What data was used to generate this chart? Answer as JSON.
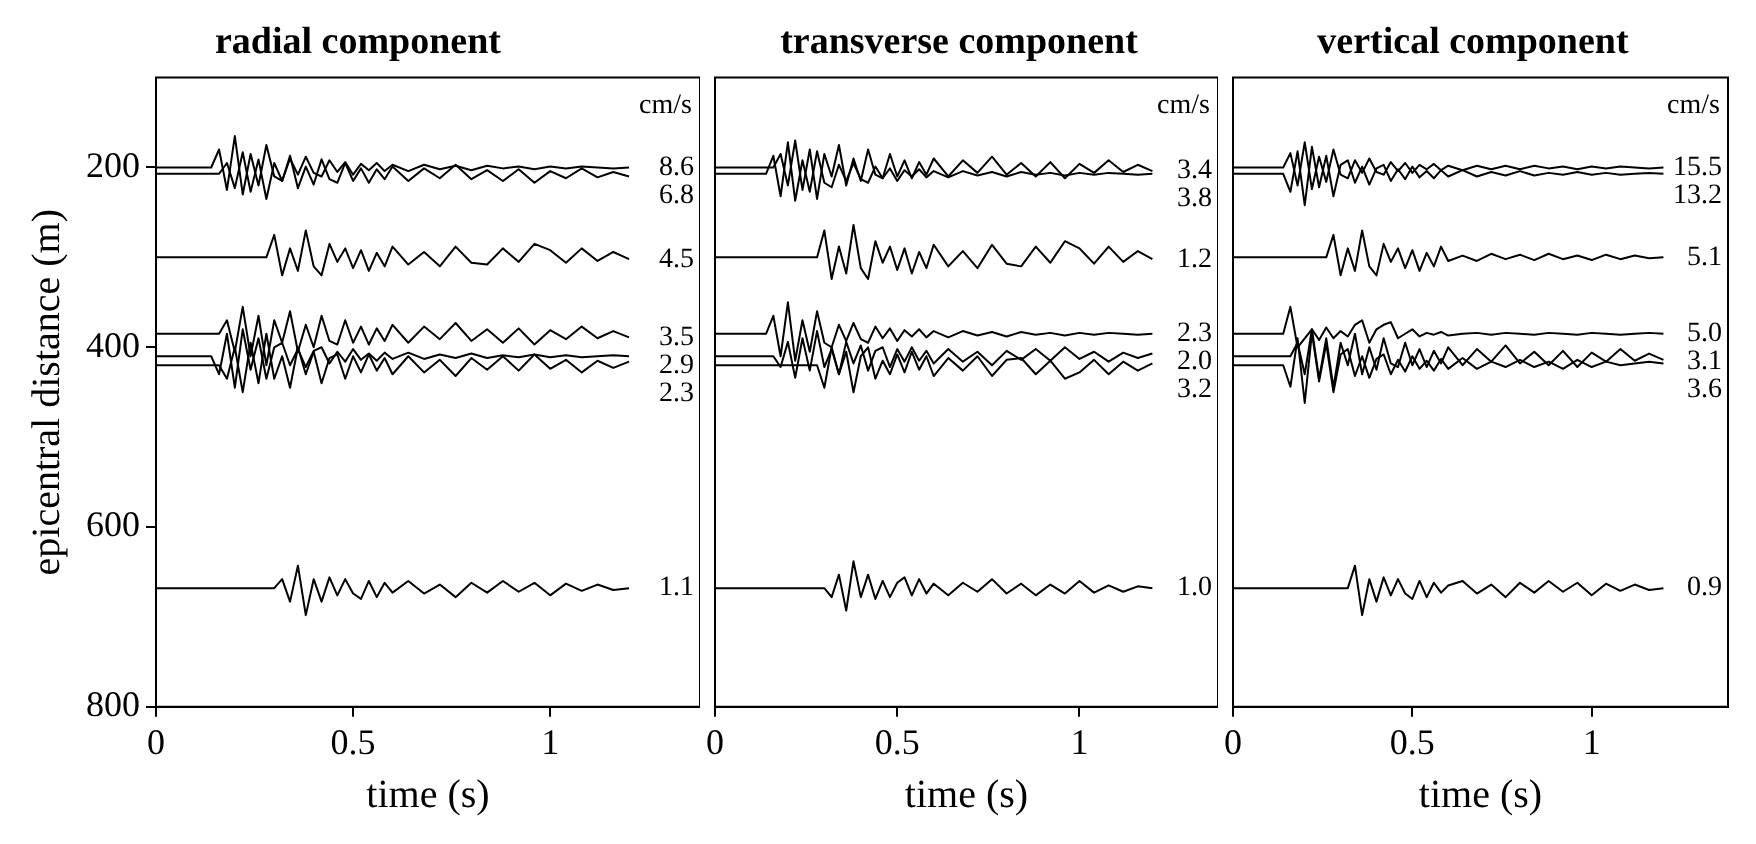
{
  "chart_data": [
    {
      "type": "line",
      "title": "radial component",
      "xlabel": "time (s)",
      "ylabel": "epicentral distance (m)",
      "xlim": [
        0,
        1.38
      ],
      "xticks": [
        0,
        0.5,
        1
      ],
      "ylim": [
        800,
        100
      ],
      "yticks": [
        200,
        400,
        600,
        800
      ],
      "marker": "none",
      "x": [
        0,
        0.14,
        0.16,
        0.18,
        0.2,
        0.22,
        0.24,
        0.26,
        0.28,
        0.3,
        0.32,
        0.34,
        0.36,
        0.38,
        0.4,
        0.42,
        0.44,
        0.46,
        0.48,
        0.5,
        0.52,
        0.54,
        0.56,
        0.58,
        0.6,
        0.64,
        0.68,
        0.72,
        0.76,
        0.8,
        0.84,
        0.88,
        0.92,
        0.96,
        1.0,
        1.04,
        1.08,
        1.12,
        1.16,
        1.2
      ],
      "series": [
        {
          "color": "#000000",
          "values": [
            200,
            200,
            180,
            225,
            165,
            230,
            185,
            220,
            175,
            210,
            215,
            190,
            208,
            188,
            206,
            210,
            192,
            205,
            194,
            208,
            196,
            203,
            195,
            204,
            197,
            204,
            197,
            202,
            198,
            203,
            198,
            201,
            199,
            202,
            199,
            201,
            199,
            200,
            201,
            200
          ]
        },
        {
          "color": "#000000",
          "values": [
            207,
            207,
            207,
            195,
            223,
            183,
            227,
            191,
            235,
            195,
            215,
            187,
            223,
            199,
            219,
            191,
            213,
            217,
            195,
            215,
            201,
            217,
            202,
            213,
            199,
            215,
            201,
            212,
            197,
            213,
            203,
            215,
            202,
            217,
            204,
            212,
            201,
            211,
            205,
            210
          ]
        },
        {
          "color": "#000000",
          "values": [
            300,
            300,
            300,
            300,
            300,
            300,
            300,
            300,
            300,
            275,
            320,
            290,
            315,
            270,
            310,
            320,
            285,
            305,
            290,
            312,
            292,
            315,
            295,
            310,
            288,
            308,
            294,
            310,
            288,
            306,
            308,
            290,
            305,
            285,
            292,
            306,
            290,
            304,
            294,
            302
          ]
        },
        {
          "color": "#000000",
          "values": [
            385,
            385,
            385,
            370,
            405,
            355,
            410,
            365,
            420,
            370,
            395,
            360,
            405,
            375,
            400,
            365,
            393,
            397,
            370,
            395,
            377,
            397,
            379,
            393,
            375,
            395,
            377,
            391,
            373,
            393,
            380,
            395,
            379,
            397,
            381,
            391,
            377,
            390,
            382,
            389
          ]
        },
        {
          "color": "#000000",
          "values": [
            410,
            410,
            430,
            385,
            445,
            380,
            425,
            390,
            435,
            400,
            395,
            420,
            402,
            422,
            404,
            400,
            418,
            405,
            416,
            402,
            414,
            407,
            415,
            406,
            413,
            406,
            413,
            408,
            412,
            407,
            412,
            409,
            411,
            408,
            411,
            409,
            411,
            410,
            409,
            410
          ]
        },
        {
          "color": "#000000",
          "values": [
            420,
            420,
            420,
            435,
            400,
            450,
            395,
            440,
            385,
            435,
            410,
            445,
            400,
            430,
            405,
            440,
            412,
            408,
            435,
            410,
            428,
            408,
            426,
            412,
            430,
            410,
            428,
            414,
            432,
            412,
            425,
            410,
            426,
            408,
            424,
            414,
            428,
            415,
            423,
            416
          ]
        },
        {
          "color": "#000000",
          "values": [
            668,
            668,
            668,
            668,
            668,
            668,
            668,
            668,
            668,
            668,
            658,
            683,
            643,
            698,
            658,
            683,
            656,
            676,
            658,
            674,
            680,
            660,
            678,
            662,
            673,
            660,
            674,
            664,
            678,
            662,
            673,
            660,
            672,
            662,
            676,
            663,
            671,
            664,
            670,
            668
          ]
        }
      ],
      "annotations": [
        "cm/s",
        "8.6",
        "6.8",
        "4.5",
        "3.5",
        "2.9",
        "2.3",
        "1.1"
      ]
    },
    {
      "type": "line",
      "title": "transverse component",
      "xlabel": "time (s)",
      "xlim": [
        0,
        1.38
      ],
      "xticks": [
        0,
        0.5,
        1
      ],
      "ylim": [
        800,
        100
      ],
      "yticks": [
        200,
        400,
        600,
        800
      ],
      "marker": "none",
      "tick_labels": "x",
      "x": [
        0,
        0.14,
        0.16,
        0.18,
        0.2,
        0.22,
        0.24,
        0.26,
        0.28,
        0.3,
        0.32,
        0.34,
        0.36,
        0.38,
        0.4,
        0.42,
        0.44,
        0.46,
        0.48,
        0.5,
        0.52,
        0.54,
        0.56,
        0.58,
        0.6,
        0.64,
        0.68,
        0.72,
        0.76,
        0.8,
        0.84,
        0.88,
        0.92,
        0.96,
        1.0,
        1.04,
        1.08,
        1.12,
        1.16,
        1.2
      ],
      "series": [
        {
          "color": "#000000",
          "values": [
            200,
            200,
            200,
            185,
            220,
            170,
            225,
            180,
            235,
            185,
            210,
            175,
            220,
            190,
            215,
            180,
            208,
            212,
            185,
            210,
            192,
            212,
            194,
            208,
            190,
            210,
            192,
            206,
            188,
            208,
            195,
            210,
            194,
            212,
            196,
            206,
            192,
            205,
            197,
            204
          ]
        },
        {
          "color": "#000000",
          "values": [
            207,
            207,
            187,
            232,
            172,
            237,
            192,
            227,
            182,
            217,
            222,
            197,
            215,
            195,
            213,
            217,
            199,
            212,
            201,
            215,
            203,
            210,
            202,
            211,
            204,
            211,
            204,
            209,
            205,
            210,
            205,
            208,
            206,
            209,
            206,
            208,
            206,
            207,
            208,
            207
          ]
        },
        {
          "color": "#000000",
          "values": [
            300,
            300,
            300,
            300,
            300,
            300,
            300,
            300,
            300,
            270,
            324,
            288,
            318,
            264,
            312,
            324,
            282,
            306,
            288,
            314,
            290,
            318,
            294,
            312,
            286,
            310,
            293,
            312,
            286,
            307,
            310,
            288,
            306,
            282,
            290,
            307,
            288,
            305,
            293,
            302
          ]
        },
        {
          "color": "#000000",
          "values": [
            385,
            385,
            365,
            410,
            350,
            415,
            370,
            405,
            360,
            395,
            400,
            375,
            393,
            373,
            391,
            395,
            377,
            390,
            379,
            393,
            381,
            388,
            380,
            389,
            382,
            389,
            382,
            387,
            383,
            388,
            383,
            386,
            384,
            387,
            384,
            386,
            384,
            385,
            386,
            385
          ]
        },
        {
          "color": "#000000",
          "values": [
            410,
            410,
            410,
            422,
            394,
            434,
            390,
            426,
            382,
            422,
            402,
            430,
            394,
            418,
            398,
            426,
            404,
            400,
            422,
            402,
            416,
            400,
            415,
            404,
            418,
            402,
            416,
            405,
            420,
            404,
            414,
            402,
            415,
            400,
            413,
            405,
            416,
            406,
            412,
            407
          ]
        },
        {
          "color": "#000000",
          "values": [
            420,
            420,
            420,
            420,
            420,
            420,
            420,
            420,
            420,
            445,
            400,
            430,
            405,
            450,
            410,
            400,
            435,
            415,
            430,
            408,
            428,
            405,
            425,
            410,
            432,
            412,
            426,
            410,
            432,
            414,
            412,
            430,
            415,
            435,
            428,
            414,
            430,
            416,
            426,
            418
          ]
        },
        {
          "color": "#000000",
          "values": [
            668,
            668,
            668,
            668,
            668,
            668,
            668,
            668,
            668,
            668,
            678,
            653,
            693,
            638,
            678,
            653,
            680,
            660,
            678,
            662,
            656,
            676,
            658,
            674,
            663,
            676,
            662,
            672,
            658,
            674,
            663,
            676,
            664,
            674,
            660,
            673,
            665,
            672,
            666,
            668
          ]
        }
      ],
      "annotations": [
        "cm/s",
        "3.4",
        "3.8",
        "1.2",
        "2.3",
        "2.0",
        "3.2",
        "1.0"
      ]
    },
    {
      "type": "line",
      "title": "vertical component",
      "xlabel": "time (s)",
      "xlim": [
        0,
        1.38
      ],
      "xticks": [
        0,
        0.5,
        1
      ],
      "ylim": [
        800,
        100
      ],
      "yticks": [
        200,
        400,
        600,
        800
      ],
      "marker": "none",
      "tick_labels": "x",
      "x": [
        0,
        0.14,
        0.16,
        0.18,
        0.2,
        0.22,
        0.24,
        0.26,
        0.28,
        0.3,
        0.32,
        0.34,
        0.36,
        0.38,
        0.4,
        0.42,
        0.44,
        0.46,
        0.48,
        0.5,
        0.52,
        0.54,
        0.56,
        0.58,
        0.6,
        0.64,
        0.68,
        0.72,
        0.76,
        0.8,
        0.84,
        0.88,
        0.92,
        0.96,
        1.0,
        1.04,
        1.08,
        1.12,
        1.16,
        1.2
      ],
      "series": [
        {
          "color": "#000000",
          "values": [
            200,
            200,
            184,
            220,
            172,
            224,
            188,
            216,
            180,
            208,
            212,
            192,
            206,
            190,
            205,
            208,
            194,
            204,
            195,
            206,
            197,
            202,
            196,
            203,
            198,
            203,
            198,
            202,
            198,
            202,
            198,
            201,
            199,
            202,
            199,
            201,
            199,
            200,
            201,
            200
          ]
        },
        {
          "color": "#000000",
          "values": [
            207,
            207,
            227,
            182,
            242,
            177,
            222,
            187,
            232,
            197,
            192,
            217,
            199,
            219,
            201,
            197,
            215,
            202,
            213,
            199,
            211,
            204,
            212,
            203,
            210,
            203,
            210,
            205,
            209,
            204,
            209,
            206,
            208,
            205,
            208,
            206,
            208,
            207,
            206,
            207
          ]
        },
        {
          "color": "#000000",
          "values": [
            300,
            300,
            300,
            300,
            300,
            300,
            300,
            300,
            275,
            320,
            290,
            315,
            270,
            310,
            320,
            285,
            305,
            290,
            312,
            292,
            315,
            295,
            310,
            288,
            304,
            298,
            304,
            296,
            302,
            297,
            303,
            296,
            302,
            298,
            303,
            297,
            302,
            298,
            301,
            300
          ]
        },
        {
          "color": "#000000",
          "values": [
            385,
            385,
            355,
            400,
            390,
            380,
            392,
            378,
            390,
            382,
            388,
            375,
            370,
            395,
            380,
            375,
            372,
            390,
            385,
            380,
            388,
            384,
            386,
            383,
            387,
            385,
            384,
            386,
            384,
            385,
            386,
            384,
            385,
            386,
            384,
            385,
            386,
            385,
            384,
            385
          ]
        },
        {
          "color": "#000000",
          "values": [
            410,
            410,
            410,
            395,
            430,
            380,
            435,
            390,
            445,
            395,
            420,
            385,
            430,
            400,
            425,
            390,
            418,
            422,
            395,
            420,
            402,
            422,
            404,
            418,
            400,
            420,
            402,
            416,
            398,
            418,
            405,
            420,
            404,
            422,
            406,
            416,
            402,
            415,
            407,
            414
          ]
        },
        {
          "color": "#000000",
          "values": [
            420,
            420,
            444,
            390,
            462,
            384,
            438,
            396,
            450,
            408,
            402,
            432,
            410,
            434,
            413,
            408,
            430,
            414,
            427,
            410,
            424,
            415,
            426,
            413,
            424,
            412,
            424,
            416,
            422,
            414,
            422,
            416,
            424,
            414,
            422,
            416,
            420,
            418,
            416,
            418
          ]
        },
        {
          "color": "#000000",
          "values": [
            668,
            668,
            668,
            668,
            668,
            668,
            668,
            668,
            668,
            668,
            668,
            643,
            698,
            658,
            683,
            656,
            676,
            658,
            674,
            680,
            660,
            678,
            662,
            673,
            665,
            660,
            674,
            664,
            678,
            662,
            673,
            660,
            672,
            662,
            676,
            663,
            671,
            664,
            670,
            668
          ]
        }
      ],
      "annotations": [
        "cm/s",
        "15.5",
        "13.2",
        "5.1",
        "5.0",
        "3.1",
        "3.6",
        "0.9"
      ]
    }
  ]
}
